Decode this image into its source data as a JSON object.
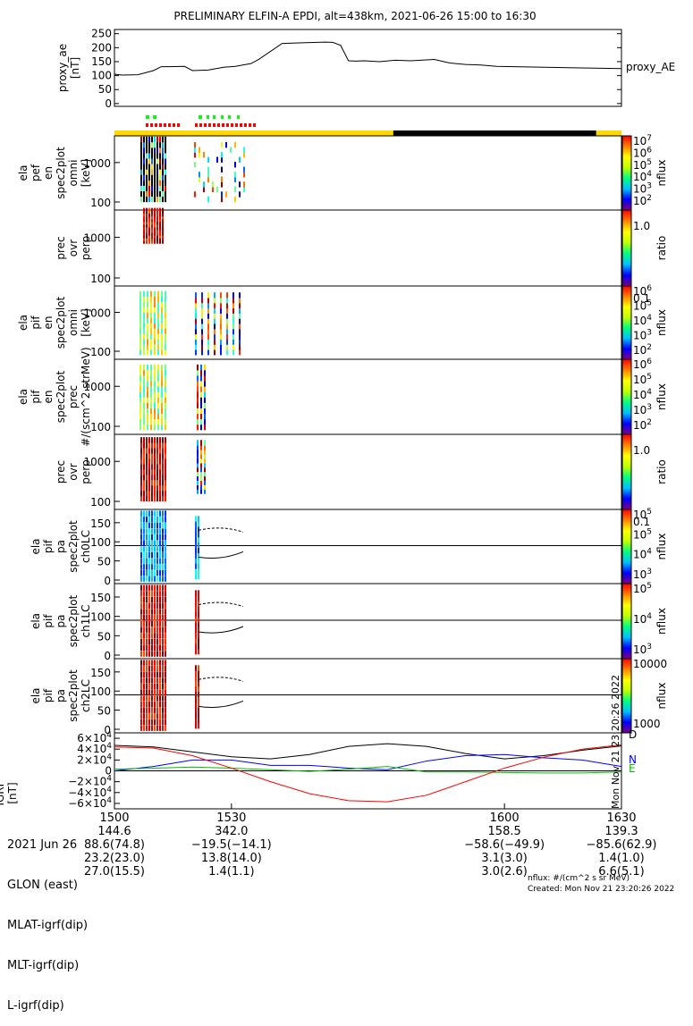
{
  "title": "PRELIMINARY ELFIN-A EPDI, alt=438km, 2021-06-26 15:00 to 16:30",
  "created": "Created: Mon Nov 21 23:20:26 2022",
  "nflux_units": "nflux: #/(cm^2 s sr MeV)",
  "side_stamp": "Mon Nov 21 23:20:26 2022",
  "colors": {
    "sunlit": "#ffd800",
    "shadow": "#000000",
    "science_green": "#00ff00",
    "science_red": "#ff0000"
  },
  "chart_data": [
    {
      "id": "proxy_ae",
      "type": "line",
      "ylabel": "proxy_ae\n[nT]",
      "legend": "proxy_AE",
      "ylim": [
        -10,
        265
      ],
      "yticks": [
        "250",
        "200",
        "150",
        "100",
        "50",
        "0"
      ],
      "x": [
        1500,
        1502,
        1506,
        1510,
        1512,
        1514,
        1518,
        1520,
        1524,
        1528,
        1531,
        1535,
        1537,
        1543,
        1549,
        1554,
        1556,
        1558,
        1560,
        1562,
        1564,
        1568,
        1572,
        1576,
        1582,
        1586,
        1590,
        1594,
        1598,
        1630
      ],
      "values": [
        105,
        102,
        103,
        118,
        132,
        132,
        133,
        118,
        120,
        130,
        133,
        143,
        158,
        215,
        218,
        220,
        219,
        208,
        153,
        152,
        153,
        150,
        155,
        153,
        158,
        145,
        140,
        138,
        133,
        125
      ]
    },
    {
      "id": "ela_pef_en",
      "ylabel": "ela\npef\nen\nspec2plot\nomni\n[keV]",
      "yticks": [
        "1000",
        "100"
      ],
      "colorbar": {
        "label": "nflux",
        "ticks": [
          "10^7",
          "10^6",
          "10^5",
          "10^4",
          "10^3",
          "10^2"
        ]
      }
    },
    {
      "id": "prec_ovr_perp_e",
      "ylabel": "prec\novr\nperp",
      "yticks": [
        "1000",
        "100"
      ],
      "colorbar": {
        "label": "ratio",
        "ticks": [
          "1.0",
          "0.1"
        ]
      }
    },
    {
      "id": "ela_pif_en",
      "ylabel": "ela\npif\nen\nspec2plot\nomni\n[keV]",
      "yticks": [
        "1000",
        "100"
      ],
      "colorbar": {
        "label": "nflux",
        "ticks": [
          "10^6",
          "10^5",
          "10^4",
          "10^3",
          "10^2"
        ]
      }
    },
    {
      "id": "ela_pif_en_prec",
      "ylabel": "ela\npif\nen\nspec2plot\nprec\n#/(scm^2 strMeV)",
      "yticks": [
        "1000",
        "100"
      ],
      "colorbar": {
        "label": "nflux",
        "ticks": [
          "10^6",
          "10^5",
          "10^4",
          "10^3",
          "10^2"
        ]
      }
    },
    {
      "id": "prec_ovr_perp_i",
      "ylabel": "prec\novr\nperp",
      "yticks": [
        "1000",
        "100"
      ],
      "colorbar": {
        "label": "ratio",
        "ticks": [
          "1.0",
          "0.1"
        ]
      }
    },
    {
      "id": "ela_pif_pa_ch0LC",
      "ylabel": "ela\npif\npa\nspec2plot\nch0LC",
      "yticks": [
        "150",
        "100",
        "50",
        "0"
      ],
      "colorbar": {
        "label": "nflux",
        "ticks": [
          "10^5",
          "10^5",
          "10^4",
          "10^3"
        ]
      }
    },
    {
      "id": "ela_pif_pa_ch1LC",
      "ylabel": "ela\npif\npa\nspec2plot\nch1LC",
      "yticks": [
        "150",
        "100",
        "50",
        "0"
      ],
      "colorbar": {
        "label": "nflux",
        "ticks": [
          "10^5",
          "10^4",
          "10^3"
        ]
      }
    },
    {
      "id": "ela_pif_pa_ch2LC",
      "ylabel": "ela\npif\npa\nspec2plot\nch2LC",
      "yticks": [
        "150",
        "100",
        "50",
        "0"
      ],
      "colorbar": {
        "label": "nflux",
        "ticks": [
          "10000",
          "1000"
        ]
      }
    },
    {
      "id": "igrf",
      "type": "line",
      "ylabel": "IGRF\n[nT]",
      "ylim": [
        -70000,
        70000
      ],
      "yticks": [
        "6×10^4",
        "4×10^4",
        "2×10^4",
        "0",
        "−2×10^4",
        "−4×10^4",
        "−6×10^4"
      ],
      "x": [
        1500,
        1510,
        1520,
        1530,
        1540,
        1550,
        1560,
        1570,
        1580,
        1590,
        1600,
        1610,
        1620,
        1630
      ],
      "series": [
        {
          "name": "D",
          "color": "#000000",
          "values": [
            47000,
            44000,
            35000,
            26000,
            22000,
            30000,
            45000,
            50000,
            45000,
            32000,
            22000,
            28000,
            38000,
            46000
          ]
        },
        {
          "name": "N",
          "color": "#0000ff",
          "values": [
            0,
            8000,
            20000,
            20000,
            10000,
            10000,
            5000,
            2000,
            18000,
            28000,
            30000,
            24000,
            20000,
            8000
          ]
        },
        {
          "name": "E",
          "color": "#00c000",
          "values": [
            3000,
            5000,
            7000,
            5000,
            2000,
            -1000,
            3000,
            8000,
            -2000,
            -2000,
            -3000,
            -4000,
            -4000,
            -2000
          ]
        },
        {
          "name": "",
          "color": "#ff0000",
          "values": [
            44000,
            42000,
            28000,
            5000,
            -20000,
            -42000,
            -55000,
            -57000,
            -45000,
            -20000,
            5000,
            25000,
            40000,
            48000
          ]
        }
      ]
    }
  ],
  "time_axis": {
    "label": "2021 Jun 26",
    "ticks": [
      {
        "t": 1500,
        "label": "1500"
      },
      {
        "t": 1530,
        "label": "1530"
      },
      {
        "t": 1600,
        "label": "1600"
      },
      {
        "t": 1630,
        "label": "1630"
      }
    ]
  },
  "footer_rows": [
    {
      "label": "2021 Jun 26",
      "vals": [
        "1500",
        "1530",
        "1600",
        "1630"
      ]
    },
    {
      "label": "GLON (east)",
      "vals": [
        "144.6",
        "342.0",
        "158.5",
        "139.3"
      ]
    },
    {
      "label": "MLAT-igrf(dip)",
      "vals": [
        "88.6(74.8)",
        "−19.5(−14.1)",
        "−58.6(−49.9)",
        "−85.6(62.9)"
      ]
    },
    {
      "label": "MLT-igrf(dip)",
      "vals": [
        "23.2(23.0)",
        "13.8(14.0)",
        "3.1(3.0)",
        "1.4(1.0)"
      ]
    },
    {
      "label": "L-igrf(dip)",
      "vals": [
        "27.0(15.5)",
        "1.4(1.1)",
        "3.0(2.6)",
        "6.6(5.1)"
      ]
    }
  ]
}
